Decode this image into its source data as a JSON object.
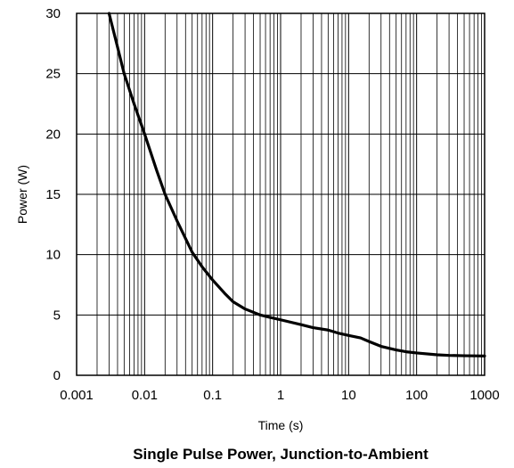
{
  "chart_data": {
    "type": "line",
    "title": "Single Pulse Power, Junction-to-Ambient",
    "xlabel": "Time (s)",
    "ylabel": "Power  (W)",
    "x_scale": "log",
    "xlim": [
      0.001,
      1000
    ],
    "ylim": [
      0,
      30
    ],
    "x_ticks": [
      {
        "value": 0.001,
        "label": "0.001"
      },
      {
        "value": 0.01,
        "label": "0.01"
      },
      {
        "value": 0.1,
        "label": "0.1"
      },
      {
        "value": 1,
        "label": "1"
      },
      {
        "value": 10,
        "label": "10"
      },
      {
        "value": 100,
        "label": "100"
      },
      {
        "value": 1000,
        "label": "1000"
      }
    ],
    "y_ticks": [
      {
        "value": 0,
        "label": "0"
      },
      {
        "value": 5,
        "label": "5"
      },
      {
        "value": 10,
        "label": "10"
      },
      {
        "value": 15,
        "label": "15"
      },
      {
        "value": 20,
        "label": "20"
      },
      {
        "value": 25,
        "label": "25"
      },
      {
        "value": 30,
        "label": "30"
      }
    ],
    "grid": true,
    "series": [
      {
        "x": [
          0.003,
          0.004,
          0.005,
          0.007,
          0.01,
          0.015,
          0.02,
          0.03,
          0.05,
          0.07,
          0.1,
          0.15,
          0.2,
          0.3,
          0.5,
          0.7,
          1,
          2,
          3,
          5,
          7,
          10,
          15,
          20,
          30,
          50,
          70,
          100,
          200,
          300,
          500,
          700,
          1000
        ],
        "y": [
          30,
          27.2,
          25,
          22.5,
          20,
          17,
          15,
          12.8,
          10.2,
          9,
          7.9,
          6.8,
          6.1,
          5.5,
          5.0,
          4.8,
          4.6,
          4.2,
          3.95,
          3.75,
          3.5,
          3.3,
          3.1,
          2.8,
          2.4,
          2.1,
          1.95,
          1.85,
          1.7,
          1.65,
          1.62,
          1.61,
          1.6
        ],
        "color": "#000000"
      }
    ]
  }
}
